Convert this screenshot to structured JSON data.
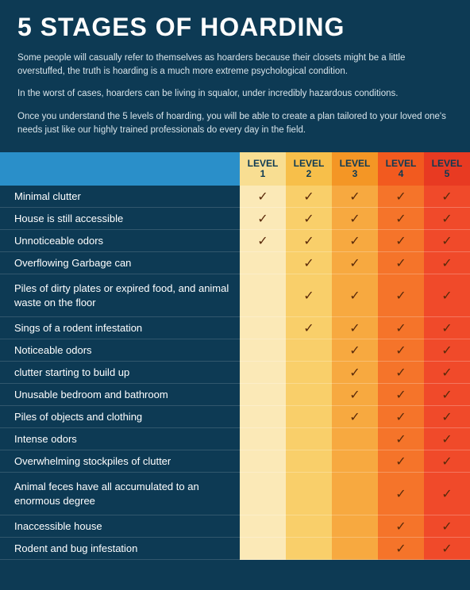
{
  "title": "5 STAGES OF HOARDING",
  "intro_paragraphs": [
    "Some people will casually refer to themselves as hoarders because their closets might be a little overstuffed, the truth is hoarding is a much more extreme psychological condition.",
    "In the worst of cases, hoarders can be living in squalor, under incredibly hazardous conditions.",
    "Once you understand the 5 levels of hoarding, you will be able to create a plan tailored to your loved one's needs just like our highly trained professionals do every day in the field."
  ],
  "check_glyph": "✓",
  "level_colors": [
    "#fbe9b7",
    "#f9cf6a",
    "#f7a940",
    "#f5742a",
    "#f04a2a"
  ],
  "level_header_colors": [
    "#f8de92",
    "#f7bf4a",
    "#f49625",
    "#f25a1f",
    "#e83a22"
  ],
  "levels": [
    "LEVEL\n1",
    "LEVEL\n2",
    "LEVEL\n3",
    "LEVEL\n4",
    "LEVEL\n5"
  ],
  "rows": [
    {
      "label": "Minimal clutter",
      "checks": [
        true,
        true,
        true,
        true,
        true
      ]
    },
    {
      "label": "House is still accessible",
      "checks": [
        true,
        true,
        true,
        true,
        true
      ]
    },
    {
      "label": "Unnoticeable odors",
      "checks": [
        true,
        true,
        true,
        true,
        true
      ]
    },
    {
      "label": "Overflowing Garbage can",
      "checks": [
        false,
        true,
        true,
        true,
        true
      ]
    },
    {
      "label": "Piles of dirty plates or expired food, and animal waste on the floor",
      "checks": [
        false,
        true,
        true,
        true,
        true
      ],
      "multiline": true
    },
    {
      "label": "Sings of a rodent infestation",
      "checks": [
        false,
        true,
        true,
        true,
        true
      ]
    },
    {
      "label": "Noticeable odors",
      "checks": [
        false,
        false,
        true,
        true,
        true
      ]
    },
    {
      "label": "clutter starting to build up",
      "checks": [
        false,
        false,
        true,
        true,
        true
      ]
    },
    {
      "label": "Unusable bedroom and bathroom",
      "checks": [
        false,
        false,
        true,
        true,
        true
      ]
    },
    {
      "label": "Piles of objects and clothing",
      "checks": [
        false,
        false,
        true,
        true,
        true
      ]
    },
    {
      "label": "Intense odors",
      "checks": [
        false,
        false,
        false,
        true,
        true
      ]
    },
    {
      "label": "Overwhelming stockpiles of clutter",
      "checks": [
        false,
        false,
        false,
        true,
        true
      ]
    },
    {
      "label": "Animal feces have all accumulated to an enormous degree",
      "checks": [
        false,
        false,
        false,
        true,
        true
      ],
      "multiline": true
    },
    {
      "label": "Inaccessible house",
      "checks": [
        false,
        false,
        false,
        true,
        true
      ]
    },
    {
      "label": "Rodent and bug infestation",
      "checks": [
        false,
        false,
        false,
        true,
        true
      ]
    }
  ]
}
